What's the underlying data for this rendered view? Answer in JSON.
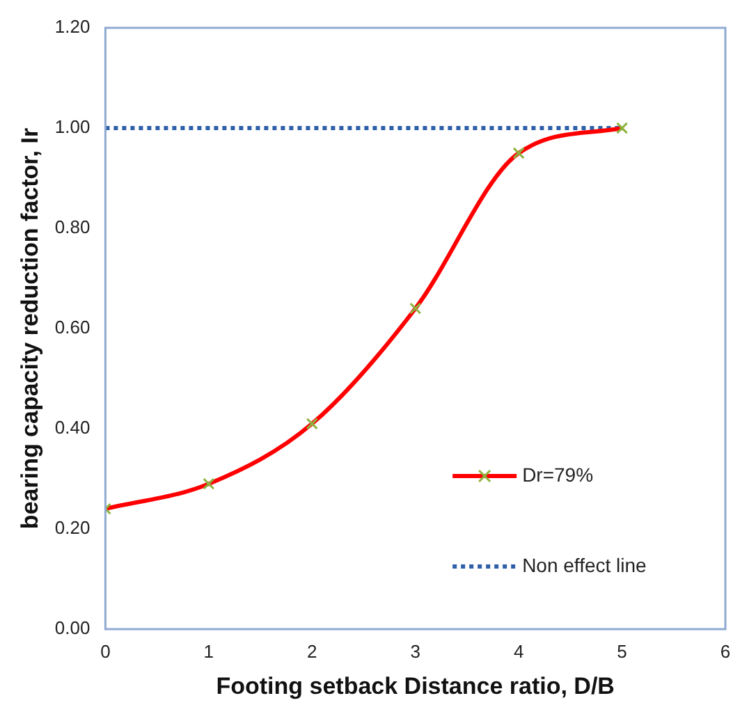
{
  "chart_data": {
    "type": "line",
    "xlabel": "Footing setback Distance ratio, D/B",
    "ylabel": "bearing capacity reduction factor, Ir",
    "xlim": [
      0,
      6
    ],
    "xticks": [
      0,
      1,
      2,
      3,
      4,
      5,
      6
    ],
    "ylim": [
      0,
      1.2
    ],
    "yticks": [
      {
        "value": 0,
        "label": "0.00"
      },
      {
        "value": 0.2,
        "label": "0.20"
      },
      {
        "value": 0.4,
        "label": "0.40"
      },
      {
        "value": 0.6,
        "label": "0.60"
      },
      {
        "value": 0.8,
        "label": "0.80"
      },
      {
        "value": 1,
        "label": "1.00"
      },
      {
        "value": 1.2,
        "label": "1.20"
      }
    ],
    "grid": false,
    "legend": "bottom right",
    "series": [
      {
        "name": "Dr=79%",
        "color": "#ff0000",
        "x": [
          0,
          1,
          2,
          3,
          4,
          5
        ],
        "values": [
          0.24,
          0.29,
          0.41,
          0.64,
          0.95,
          1.0
        ],
        "marker": "cross",
        "line_style": "solid"
      },
      {
        "name": "Non effect line",
        "color": "#2e5fa8",
        "x": [
          0,
          5
        ],
        "values": [
          1,
          1
        ],
        "marker": "none",
        "line_style": "dotted"
      }
    ]
  }
}
